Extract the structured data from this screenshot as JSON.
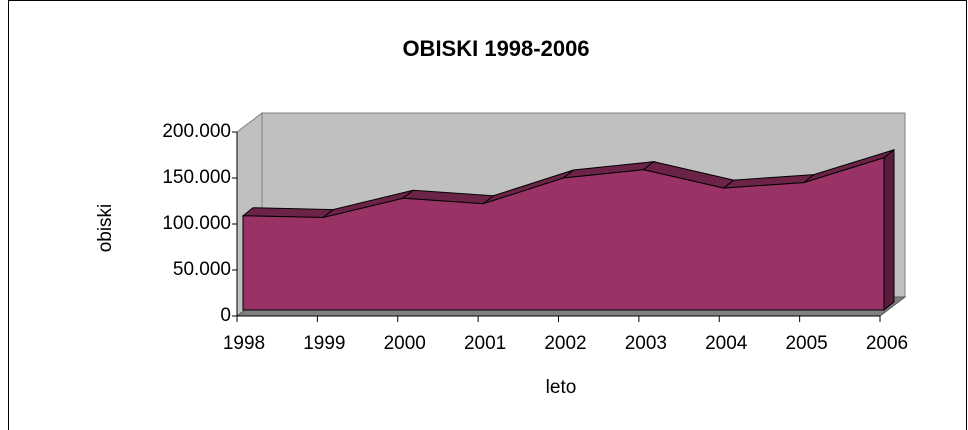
{
  "chart_data": {
    "type": "area3d",
    "title": "OBISKI 1998-2006",
    "x_label": "leto",
    "y_label": "obiski",
    "categories": [
      "1998",
      "1999",
      "2000",
      "2001",
      "2002",
      "2003",
      "2004",
      "2005",
      "2006"
    ],
    "values": [
      109000,
      107000,
      128000,
      122000,
      150000,
      159000,
      139000,
      145000,
      172000
    ],
    "color": "#993366",
    "ylim": [
      0,
      200000
    ],
    "yticks": [
      0,
      {
        "value": 50000,
        "label": "50.000"
      },
      {
        "value": 100000,
        "label": "100.000"
      },
      {
        "value": 150000,
        "label": "150.000"
      },
      {
        "value": 200000,
        "label": "200.000"
      }
    ],
    "grid": false
  }
}
